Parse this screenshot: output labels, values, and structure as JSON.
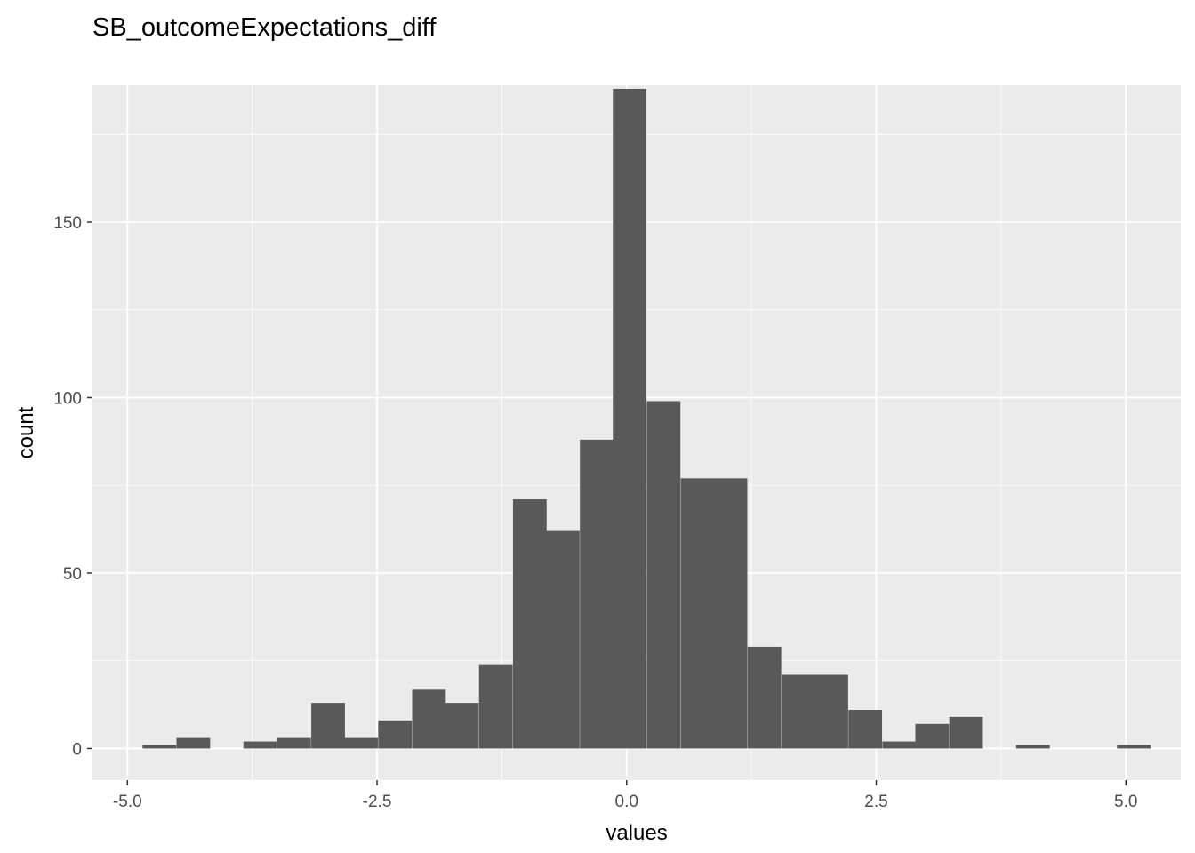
{
  "chart_data": {
    "type": "bar",
    "title": "SB_outcomeExpectations_diff",
    "xlabel": "values",
    "ylabel": "count",
    "xlim": [
      -5.35,
      5.55
    ],
    "ylim": [
      -9,
      189
    ],
    "x_ticks": [
      -5.0,
      -2.5,
      0.0,
      2.5,
      5.0
    ],
    "x_tick_labels": [
      "-5.0",
      "-2.5",
      "0.0",
      "2.5",
      "5.0"
    ],
    "y_ticks": [
      0,
      50,
      100,
      150
    ],
    "y_tick_labels": [
      "0",
      "50",
      "100",
      "150"
    ],
    "bin_width": 0.3367,
    "bins": [
      {
        "x": -4.68,
        "count": 1
      },
      {
        "x": -4.34,
        "count": 3
      },
      {
        "x": -4.0,
        "count": 0
      },
      {
        "x": -3.67,
        "count": 2
      },
      {
        "x": -3.33,
        "count": 3
      },
      {
        "x": -2.99,
        "count": 13
      },
      {
        "x": -2.66,
        "count": 3
      },
      {
        "x": -2.32,
        "count": 8
      },
      {
        "x": -1.98,
        "count": 17
      },
      {
        "x": -1.65,
        "count": 13
      },
      {
        "x": -1.31,
        "count": 24
      },
      {
        "x": -0.97,
        "count": 71
      },
      {
        "x": -0.64,
        "count": 62
      },
      {
        "x": -0.3,
        "count": 88
      },
      {
        "x": 0.03,
        "count": 188
      },
      {
        "x": 0.37,
        "count": 99
      },
      {
        "x": 0.71,
        "count": 77
      },
      {
        "x": 1.04,
        "count": 77
      },
      {
        "x": 1.38,
        "count": 29
      },
      {
        "x": 1.72,
        "count": 21
      },
      {
        "x": 2.05,
        "count": 21
      },
      {
        "x": 2.39,
        "count": 11
      },
      {
        "x": 2.73,
        "count": 2
      },
      {
        "x": 3.06,
        "count": 7
      },
      {
        "x": 3.4,
        "count": 9
      },
      {
        "x": 3.74,
        "count": 0
      },
      {
        "x": 4.07,
        "count": 1
      },
      {
        "x": 4.41,
        "count": 0
      },
      {
        "x": 4.75,
        "count": 0
      },
      {
        "x": 5.08,
        "count": 1
      }
    ],
    "grid": true,
    "colors": {
      "panel_background": "#ebebeb",
      "grid_major": "#ffffff",
      "bar_fill": "#595959",
      "tick_text": "#4d4d4d",
      "tick_mark": "#333333"
    }
  }
}
